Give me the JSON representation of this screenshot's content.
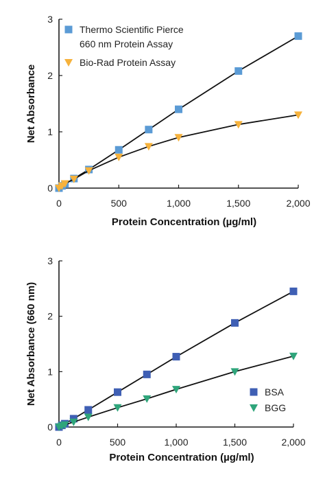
{
  "chart_data": [
    {
      "type": "line",
      "title": "",
      "xlabel": "Protein Concentration (µg/ml)",
      "ylabel": "Net Absorbance",
      "xlim": [
        0,
        2000
      ],
      "ylim": [
        0,
        3
      ],
      "x_ticks": [
        "0",
        "500",
        "1,000",
        "1,500",
        "2,000"
      ],
      "x_tick_values": [
        0,
        500,
        1000,
        1500,
        2000
      ],
      "y_ticks": [
        "0",
        "1",
        "2",
        "3"
      ],
      "y_tick_values": [
        0,
        1,
        2,
        3
      ],
      "grid": false,
      "legend_position": "top-left",
      "x": [
        0,
        25,
        50,
        125,
        250,
        500,
        750,
        1000,
        1500,
        2000
      ],
      "series": [
        {
          "name": "Thermo Scientific Pierce 660 nm Protein Assay",
          "legend_lines": [
            "Thermo Scientific Pierce",
            "660 nm Protein Assay"
          ],
          "marker": "square",
          "color": "#5b9bd5",
          "values": [
            0.0,
            0.04,
            0.07,
            0.17,
            0.33,
            0.68,
            1.04,
            1.4,
            2.08,
            2.7
          ]
        },
        {
          "name": "Bio-Rad Protein Assay",
          "legend_lines": [
            "Bio-Rad Protein Assay"
          ],
          "marker": "triangle-down",
          "color": "#f6b23c",
          "values": [
            0.0,
            0.04,
            0.08,
            0.16,
            0.31,
            0.55,
            0.74,
            0.9,
            1.13,
            1.3
          ]
        }
      ]
    },
    {
      "type": "line",
      "title": "",
      "xlabel": "Protein Concentration (µg/ml)",
      "ylabel": "Net Absorbance (660 nm)",
      "xlim": [
        0,
        2000
      ],
      "ylim": [
        0,
        3
      ],
      "x_ticks": [
        "0",
        "500",
        "1,000",
        "1,500",
        "2,000"
      ],
      "x_tick_values": [
        0,
        500,
        1000,
        1500,
        2000
      ],
      "y_ticks": [
        "0",
        "1",
        "2",
        "3"
      ],
      "y_tick_values": [
        0,
        1,
        2,
        3
      ],
      "grid": false,
      "legend_position": "bottom-right",
      "x": [
        0,
        25,
        50,
        125,
        250,
        500,
        750,
        1000,
        1500,
        2000
      ],
      "series": [
        {
          "name": "BSA",
          "legend_lines": [
            "BSA"
          ],
          "marker": "square",
          "color": "#3f5fb4",
          "values": [
            0.0,
            0.03,
            0.06,
            0.15,
            0.31,
            0.63,
            0.95,
            1.27,
            1.88,
            2.45
          ]
        },
        {
          "name": "BGG",
          "legend_lines": [
            "BGG"
          ],
          "marker": "triangle-down",
          "color": "#2fa57b",
          "values": [
            0.0,
            0.02,
            0.04,
            0.09,
            0.18,
            0.35,
            0.51,
            0.68,
            1.0,
            1.28
          ]
        }
      ]
    }
  ]
}
